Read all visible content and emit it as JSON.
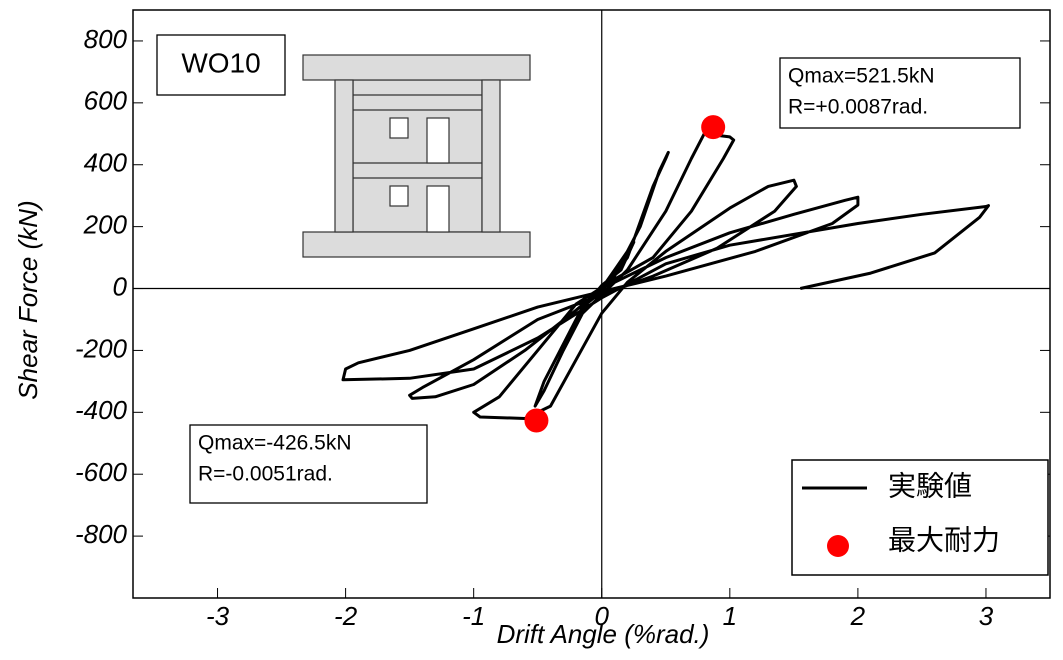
{
  "chart_data": {
    "type": "line",
    "xlabel": "Drift Angle (%rad.)",
    "ylabel": "Shear Force (kN)",
    "xlim": [
      -3.66,
      3.5
    ],
    "xticks": [
      -3,
      -2,
      -1,
      0,
      1,
      2,
      3
    ],
    "ylim": [
      -1000,
      900
    ],
    "yticks": [
      -800,
      -600,
      -400,
      -200,
      0,
      200,
      400,
      600,
      800
    ],
    "legend": "lower right",
    "annotations": [
      "WO10",
      "Qmax=521.5kN",
      "R=+0.0087rad.",
      "Qmax=-426.5kN",
      "R=-0.0051rad."
    ],
    "series": [
      {
        "name": "実験値",
        "type": "line",
        "color": "#000000",
        "x": [
          0,
          0.1,
          0.25,
          0.15,
          0,
          -0.1,
          -0.25,
          -0.15,
          0,
          0.2,
          0.4,
          0.5,
          0.52,
          0.45,
          0.3,
          0.1,
          -0.1,
          -0.3,
          -0.45,
          -0.52,
          -0.45,
          -0.2,
          0,
          0.2,
          0.5,
          0.7,
          0.8,
          1.0,
          1.03,
          0.95,
          0.7,
          0.4,
          0.1,
          -0.2,
          -0.5,
          -0.8,
          -1.0,
          -0.95,
          -0.6,
          -0.4,
          -0.2,
          0,
          0.2,
          0.5,
          1.0,
          1.3,
          1.5,
          1.52,
          1.35,
          0.9,
          0.4,
          0,
          -0.5,
          -1.0,
          -1.4,
          -1.5,
          -1.48,
          -1.3,
          -1.0,
          -0.6,
          -0.2,
          0,
          0.5,
          1.0,
          1.5,
          1.9,
          2.0,
          2.0,
          1.8,
          1.2,
          0.5,
          0,
          -0.5,
          -1.0,
          -1.5,
          -1.9,
          -2.0,
          -2.02,
          -1.5,
          -1.0,
          -0.5,
          0,
          0.5,
          1.0,
          2.0,
          2.5,
          3.0,
          3.02,
          2.95,
          2.6,
          2.1,
          1.55
        ],
        "values": [
          0,
          60,
          150,
          60,
          10,
          -40,
          -140,
          -60,
          -10,
          100,
          330,
          420,
          440,
          380,
          200,
          40,
          -40,
          -200,
          -330,
          -380,
          -300,
          -100,
          -20,
          60,
          250,
          420,
          500,
          490,
          480,
          420,
          250,
          100,
          30,
          -50,
          -200,
          -350,
          -400,
          -415,
          -420,
          -380,
          -230,
          -80,
          20,
          120,
          260,
          330,
          350,
          330,
          250,
          130,
          40,
          -20,
          -100,
          -230,
          -320,
          -345,
          -355,
          -350,
          -310,
          -200,
          -70,
          0,
          100,
          180,
          240,
          285,
          295,
          270,
          210,
          120,
          40,
          -10,
          -60,
          -130,
          -200,
          -240,
          -260,
          -295,
          -290,
          -260,
          -160,
          -30,
          80,
          140,
          210,
          240,
          265,
          268,
          230,
          115,
          50,
          0
        ]
      },
      {
        "name": "最大耐力",
        "type": "scatter",
        "color": "#ff0000",
        "x": [
          0.87,
          -0.51
        ],
        "values": [
          521.5,
          -426.5
        ]
      }
    ]
  }
}
